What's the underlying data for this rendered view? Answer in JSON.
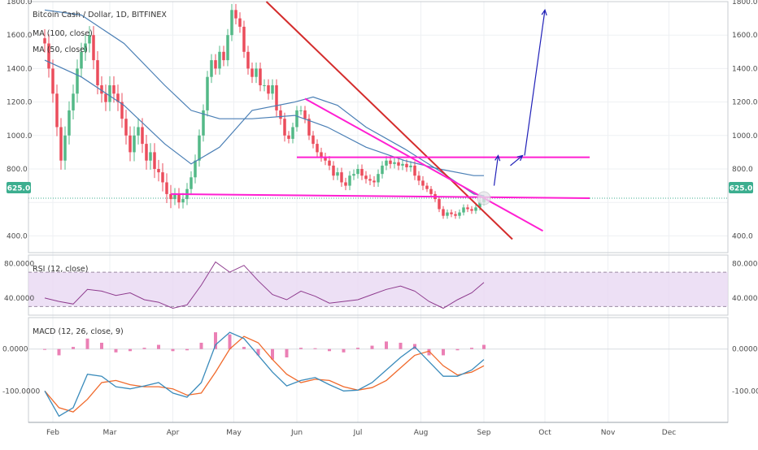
{
  "legend": {
    "symbol": "Bitcoin Cash / Dollar, 1D, BITFINEX",
    "ma_fast": "MA (100, close)",
    "ma_slow": "MA (50, close)",
    "rsi": "RSI (12, close)",
    "macd": "MACD (12, 26, close, 9)"
  },
  "colors": {
    "up": "#53b987",
    "down": "#eb4d5c",
    "ma": "#4a7fb5",
    "rsi_line": "#8e3b8e",
    "rsi_band": "#e9d8f3",
    "macd_line": "#3a8bbb",
    "signal_line": "#f06a2c",
    "histogram": "#e86aa8",
    "last_price_label": "#3cae8f",
    "resistance_trend": "#d42c2c",
    "pink_lines": "#ff1fd2",
    "projection_arrow": "#2020b8"
  },
  "last_price": {
    "label": "625.0",
    "value": 625
  },
  "chart_data": [
    {
      "type": "candlestick",
      "name": "price",
      "y_scale": "linear",
      "ylim": [
        300,
        1800
      ],
      "y_ticks": [
        400,
        600,
        800,
        1000,
        1200,
        1400,
        1600,
        1800
      ],
      "y_tick_labels": [
        "400.0",
        "",
        "800.0",
        "1000.0",
        "1200.0",
        "1400.0",
        "1600.0",
        "1800.0"
      ],
      "x": [
        "2018-01-28",
        "2018-01-30",
        "2018-02-01",
        "2018-02-03",
        "2018-02-05",
        "2018-02-07",
        "2018-02-09",
        "2018-02-11",
        "2018-02-13",
        "2018-02-15",
        "2018-02-17",
        "2018-02-19",
        "2018-02-21",
        "2018-02-23",
        "2018-02-25",
        "2018-02-27",
        "2018-03-01",
        "2018-03-03",
        "2018-03-05",
        "2018-03-07",
        "2018-03-09",
        "2018-03-11",
        "2018-03-13",
        "2018-03-15",
        "2018-03-17",
        "2018-03-19",
        "2018-03-21",
        "2018-03-23",
        "2018-03-25",
        "2018-03-27",
        "2018-03-29",
        "2018-03-31",
        "2018-04-02",
        "2018-04-04",
        "2018-04-06",
        "2018-04-08",
        "2018-04-10",
        "2018-04-12",
        "2018-04-14",
        "2018-04-16",
        "2018-04-18",
        "2018-04-20",
        "2018-04-22",
        "2018-04-24",
        "2018-04-26",
        "2018-04-28",
        "2018-04-30",
        "2018-05-02",
        "2018-05-04",
        "2018-05-06",
        "2018-05-08",
        "2018-05-10",
        "2018-05-12",
        "2018-05-14",
        "2018-05-16",
        "2018-05-18",
        "2018-05-20",
        "2018-05-22",
        "2018-05-24",
        "2018-05-26",
        "2018-05-28",
        "2018-05-30",
        "2018-06-01",
        "2018-06-03",
        "2018-06-05",
        "2018-06-07",
        "2018-06-09",
        "2018-06-11",
        "2018-06-13",
        "2018-06-15",
        "2018-06-17",
        "2018-06-19",
        "2018-06-21",
        "2018-06-23",
        "2018-06-25",
        "2018-06-27",
        "2018-06-29",
        "2018-07-01",
        "2018-07-03",
        "2018-07-05",
        "2018-07-07",
        "2018-07-09",
        "2018-07-11",
        "2018-07-13",
        "2018-07-15",
        "2018-07-17",
        "2018-07-19",
        "2018-07-21",
        "2018-07-23",
        "2018-07-25",
        "2018-07-27",
        "2018-07-29",
        "2018-07-31",
        "2018-08-02",
        "2018-08-04",
        "2018-08-06",
        "2018-08-08",
        "2018-08-10",
        "2018-08-12",
        "2018-08-14",
        "2018-08-16",
        "2018-08-18",
        "2018-08-20",
        "2018-08-22",
        "2018-08-24",
        "2018-08-26",
        "2018-08-28",
        "2018-08-30",
        "2018-09-01"
      ],
      "close": [
        1550,
        1400,
        1250,
        1050,
        850,
        1000,
        1150,
        1250,
        1400,
        1500,
        1550,
        1600,
        1450,
        1300,
        1250,
        1200,
        1300,
        1250,
        1200,
        1100,
        1000,
        900,
        1000,
        1050,
        950,
        850,
        900,
        800,
        780,
        720,
        650,
        620,
        650,
        600,
        620,
        680,
        750,
        850,
        1000,
        1150,
        1350,
        1450,
        1400,
        1500,
        1450,
        1600,
        1750,
        1700,
        1650,
        1500,
        1400,
        1350,
        1400,
        1300,
        1300,
        1250,
        1300,
        1150,
        1100,
        1000,
        980,
        1050,
        1150,
        1150,
        1100,
        1000,
        950,
        900,
        870,
        850,
        820,
        760,
        780,
        720,
        700,
        760,
        770,
        800,
        760,
        740,
        730,
        720,
        770,
        820,
        850,
        830,
        840,
        820,
        830,
        810,
        820,
        760,
        730,
        700,
        680,
        650,
        620,
        560,
        520,
        540,
        530,
        520,
        540,
        570,
        560,
        550,
        570,
        600,
        625
      ],
      "volatility": [
        60,
        60,
        60,
        60,
        60,
        60,
        60,
        60,
        60,
        60,
        60,
        60,
        60,
        60,
        60,
        60,
        60,
        60,
        60,
        60,
        60,
        60,
        60,
        60,
        60,
        60,
        60,
        60,
        60,
        60,
        60,
        60,
        40,
        40,
        40,
        40,
        40,
        40,
        40,
        40,
        40,
        40,
        40,
        40,
        40,
        40,
        40,
        40,
        40,
        40,
        40,
        40,
        40,
        40,
        40,
        40,
        40,
        40,
        40,
        40,
        30,
        30,
        30,
        30,
        30,
        30,
        30,
        30,
        30,
        30,
        30,
        30,
        30,
        30,
        30,
        30,
        30,
        30,
        30,
        30,
        30,
        30,
        30,
        30,
        30,
        30,
        30,
        30,
        30,
        30,
        30,
        30,
        30,
        30,
        20,
        20,
        20,
        20,
        20,
        20,
        20,
        20,
        20,
        20,
        20,
        20,
        20,
        20,
        20
      ],
      "ma_fast": {
        "x": [
          "2018-01-28",
          "2018-02-15",
          "2018-03-08",
          "2018-03-28",
          "2018-04-10",
          "2018-04-24",
          "2018-05-10",
          "2018-05-31",
          "2018-06-16",
          "2018-07-05",
          "2018-07-24",
          "2018-08-10",
          "2018-08-27",
          "2018-09-01"
        ],
        "y": [
          1750,
          1720,
          1550,
          1300,
          1150,
          1100,
          1100,
          1120,
          1050,
          930,
          850,
          800,
          760,
          760
        ]
      },
      "ma_slow": {
        "x": [
          "2018-01-28",
          "2018-02-15",
          "2018-03-08",
          "2018-03-28",
          "2018-04-10",
          "2018-04-24",
          "2018-05-10",
          "2018-05-31",
          "2018-06-09",
          "2018-06-21",
          "2018-07-05",
          "2018-07-24",
          "2018-08-10",
          "2018-08-27",
          "2018-09-01"
        ],
        "y": [
          1450,
          1350,
          1180,
          950,
          830,
          930,
          1150,
          1200,
          1230,
          1180,
          1050,
          920,
          790,
          650,
          640
        ]
      }
    },
    {
      "type": "line",
      "name": "rsi",
      "ylim": [
        20,
        90
      ],
      "y_ticks": [
        40,
        80
      ],
      "y_tick_labels": [
        "40.0000",
        "80.0000"
      ],
      "band": [
        30,
        70
      ],
      "x": [
        "2018-01-28",
        "2018-02-04",
        "2018-02-11",
        "2018-02-18",
        "2018-02-25",
        "2018-03-04",
        "2018-03-11",
        "2018-03-18",
        "2018-03-25",
        "2018-04-01",
        "2018-04-08",
        "2018-04-15",
        "2018-04-22",
        "2018-04-29",
        "2018-05-06",
        "2018-05-13",
        "2018-05-20",
        "2018-05-27",
        "2018-06-03",
        "2018-06-10",
        "2018-06-17",
        "2018-06-24",
        "2018-07-01",
        "2018-07-08",
        "2018-07-15",
        "2018-07-22",
        "2018-07-29",
        "2018-08-05",
        "2018-08-12",
        "2018-08-19",
        "2018-08-26",
        "2018-09-01"
      ],
      "values": [
        40,
        36,
        33,
        50,
        48,
        43,
        46,
        38,
        35,
        28,
        32,
        55,
        82,
        70,
        78,
        60,
        44,
        38,
        48,
        42,
        34,
        36,
        38,
        44,
        50,
        54,
        48,
        36,
        28,
        38,
        46,
        58
      ]
    },
    {
      "type": "line",
      "name": "macd",
      "ylim": [
        -175,
        75
      ],
      "y_ticks": [
        -100,
        0
      ],
      "y_tick_labels": [
        "-100.0000",
        "0.0000"
      ],
      "x": [
        "2018-01-28",
        "2018-02-04",
        "2018-02-11",
        "2018-02-18",
        "2018-02-25",
        "2018-03-04",
        "2018-03-11",
        "2018-03-18",
        "2018-03-25",
        "2018-04-01",
        "2018-04-08",
        "2018-04-15",
        "2018-04-22",
        "2018-04-29",
        "2018-05-06",
        "2018-05-13",
        "2018-05-20",
        "2018-05-27",
        "2018-06-03",
        "2018-06-10",
        "2018-06-17",
        "2018-06-24",
        "2018-07-01",
        "2018-07-08",
        "2018-07-15",
        "2018-07-22",
        "2018-07-29",
        "2018-08-05",
        "2018-08-12",
        "2018-08-19",
        "2018-08-26",
        "2018-09-01"
      ],
      "macd": [
        -100,
        -160,
        -140,
        -60,
        -65,
        -90,
        -95,
        -88,
        -80,
        -105,
        -115,
        -80,
        10,
        40,
        25,
        -15,
        -55,
        -88,
        -75,
        -68,
        -85,
        -100,
        -98,
        -80,
        -50,
        -20,
        5,
        -30,
        -65,
        -65,
        -50,
        -25
      ],
      "signal": [
        -100,
        -140,
        -150,
        -120,
        -80,
        -75,
        -85,
        -90,
        -90,
        -95,
        -110,
        -105,
        -55,
        0,
        30,
        15,
        -25,
        -60,
        -80,
        -72,
        -75,
        -90,
        -98,
        -92,
        -75,
        -45,
        -15,
        -5,
        -40,
        -62,
        -55,
        -40
      ],
      "histogram": [
        0,
        -15,
        5,
        25,
        15,
        -8,
        -5,
        3,
        10,
        -5,
        -3,
        15,
        40,
        35,
        5,
        -15,
        -25,
        -20,
        3,
        2,
        -5,
        -8,
        3,
        8,
        18,
        15,
        12,
        -15,
        -15,
        -3,
        3,
        10
      ]
    }
  ],
  "x_axis": {
    "range": [
      "2018-01-20",
      "2018-12-30"
    ],
    "ticks": [
      {
        "date": "2018-02-01",
        "label": "Feb"
      },
      {
        "date": "2018-03-01",
        "label": "Mar"
      },
      {
        "date": "2018-04-01",
        "label": "Apr"
      },
      {
        "date": "2018-05-01",
        "label": "May"
      },
      {
        "date": "2018-06-01",
        "label": "Jun"
      },
      {
        "date": "2018-07-01",
        "label": "Jul"
      },
      {
        "date": "2018-08-01",
        "label": "Aug"
      },
      {
        "date": "2018-09-01",
        "label": "Sep"
      },
      {
        "date": "2018-10-01",
        "label": "Oct"
      },
      {
        "date": "2018-11-01",
        "label": "Nov"
      },
      {
        "date": "2018-12-01",
        "label": "Dec"
      }
    ]
  },
  "drawings": {
    "falling_trendline": {
      "from": {
        "x": "2018-05-17",
        "y": 1800
      },
      "to": {
        "x": "2018-09-15",
        "y": 380
      }
    },
    "upper_channel_line": {
      "from": {
        "x": "2018-06-05",
        "y": 1220
      },
      "to": {
        "x": "2018-09-30",
        "y": 430
      }
    },
    "resistance_line": {
      "from": {
        "x": "2018-06-01",
        "y": 870
      },
      "to": {
        "x": "2018-10-23",
        "y": 870
      }
    },
    "support_line": {
      "from": {
        "x": "2018-03-31",
        "y": 650
      },
      "to": {
        "x": "2018-10-23",
        "y": 625
      }
    },
    "projection_arrow_1": {
      "from": {
        "x": "2018-09-06",
        "y": 700
      },
      "to": {
        "x": "2018-09-08",
        "y": 880
      }
    },
    "projection_arrow_2": {
      "from": {
        "x": "2018-09-14",
        "y": 820
      },
      "to": {
        "x": "2018-09-20",
        "y": 880
      }
    },
    "projection_arrow_3": {
      "from": {
        "x": "2018-09-21",
        "y": 880
      },
      "to": {
        "x": "2018-10-01",
        "y": 1750
      }
    },
    "highlight_circle": {
      "x": "2018-09-01",
      "y": 625
    }
  }
}
